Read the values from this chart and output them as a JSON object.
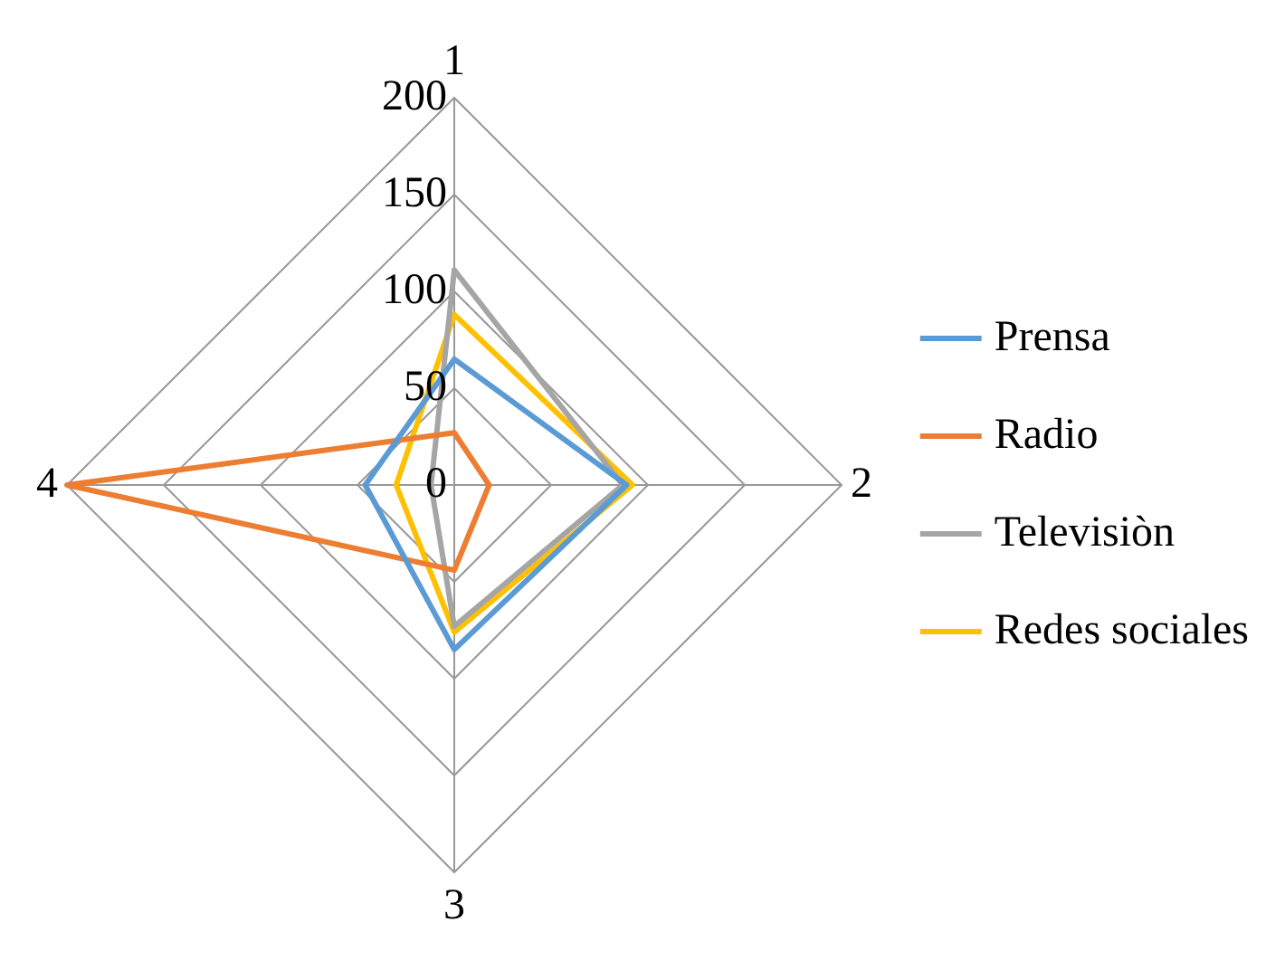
{
  "chart_data": {
    "type": "radar",
    "categories": [
      "1",
      "2",
      "3",
      "4"
    ],
    "series": [
      {
        "name": "Prensa",
        "color": "#5b9bd5",
        "values": [
          65,
          89,
          85,
          46
        ]
      },
      {
        "name": "Radio",
        "color": "#ed7d31",
        "values": [
          27,
          18,
          44,
          200
        ]
      },
      {
        "name": "Televisiòn",
        "color": "#a5a5a5",
        "values": [
          111,
          87,
          73,
          12
        ]
      },
      {
        "name": "Redes sociales",
        "color": "#ffc000",
        "values": [
          88,
          92,
          76,
          30
        ]
      }
    ],
    "ylim": [
      0,
      200
    ],
    "yticks": [
      0,
      50,
      100,
      150,
      200
    ],
    "grid": true,
    "legend": "right",
    "marker": "none"
  }
}
